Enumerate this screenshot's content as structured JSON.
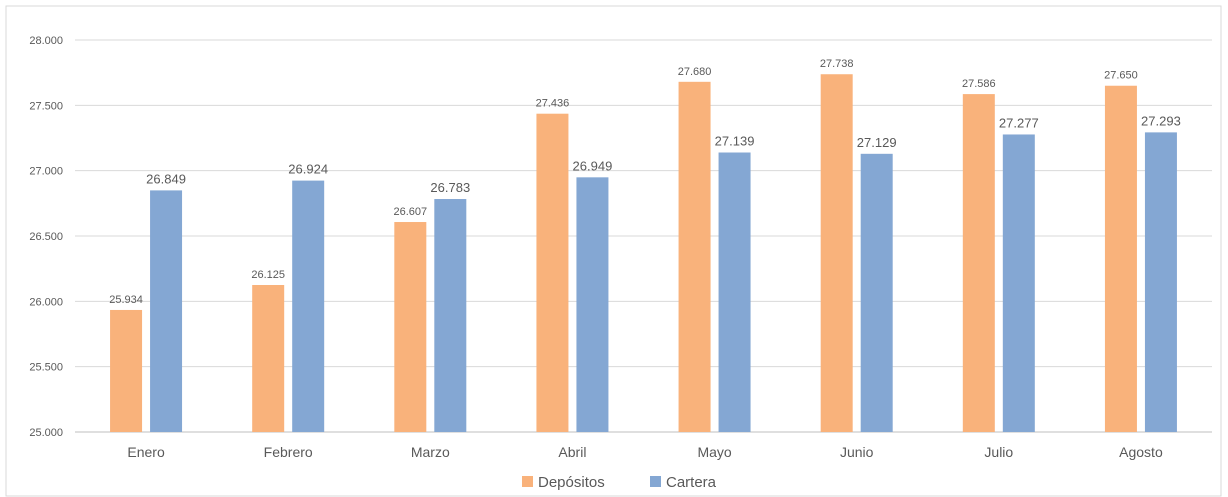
{
  "chart_data": {
    "type": "bar",
    "title": "",
    "xlabel": "",
    "ylabel": "",
    "categories": [
      "Enero",
      "Febrero",
      "Marzo",
      "Abril",
      "Mayo",
      "Junio",
      "Julio",
      "Agosto"
    ],
    "series": [
      {
        "name": "Depósitos",
        "color": "#F9B27B",
        "values": [
          25934,
          26125,
          26607,
          27436,
          27680,
          27738,
          27586,
          27650
        ],
        "labels": [
          "25.934",
          "26.125",
          "26.607",
          "27.436",
          "27.680",
          "27.738",
          "27.586",
          "27.650"
        ]
      },
      {
        "name": "Cartera",
        "color": "#84A7D3",
        "values": [
          26849,
          26924,
          26783,
          26949,
          27139,
          27129,
          27277,
          27293
        ],
        "labels": [
          "26.849",
          "26.924",
          "26.783",
          "26.949",
          "27.139",
          "27.129",
          "27.277",
          "27.293"
        ]
      }
    ],
    "ylim": [
      25000,
      28000
    ],
    "yticks": [
      25000,
      25500,
      26000,
      26500,
      27000,
      27500,
      28000
    ],
    "ytick_labels": [
      "25.000",
      "25.500",
      "26.000",
      "26.500",
      "27.000",
      "27.500",
      "28.000"
    ],
    "grid": true,
    "legend_position": "bottom"
  }
}
